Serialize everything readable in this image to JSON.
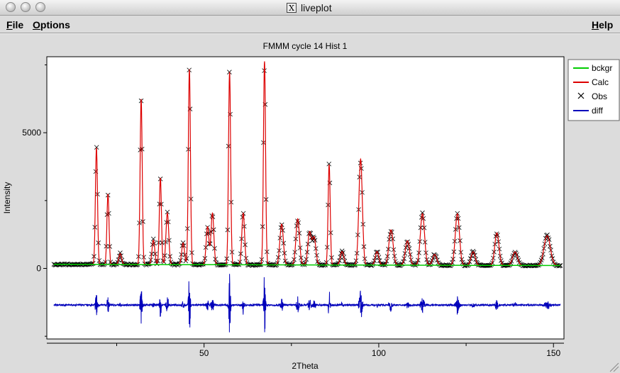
{
  "window": {
    "title": "liveplot",
    "x_badge": "X"
  },
  "menubar": {
    "file_accel": "F",
    "file_rest": "ile",
    "options_accel": "O",
    "options_rest": "ptions",
    "help_accel": "H",
    "help_rest": "elp"
  },
  "colors": {
    "bckgr": "#00cc00",
    "calc": "#dd0000",
    "obs": "#000000",
    "diff": "#0000bb"
  },
  "chart_data": {
    "type": "line",
    "title": "FMMM cycle 14 Hist 1",
    "xlabel": "2Theta",
    "ylabel": "Intensity",
    "xlim": [
      5,
      153
    ],
    "ylim": [
      -2600,
      7800
    ],
    "xticks": [
      50,
      100,
      150
    ],
    "xtick_labels": [
      "50",
      "100",
      "150"
    ],
    "yticks": [
      0,
      5000
    ],
    "ytick_labels": [
      "0",
      "5000"
    ],
    "diff_offset": -1350,
    "background_level": 150,
    "legend": [
      "bckgr",
      "Calc",
      "Obs",
      "diff"
    ],
    "legend_position": "right",
    "peaks": [
      {
        "x": 19.2,
        "h": 4300,
        "w": 0.3
      },
      {
        "x": 22.5,
        "h": 2600,
        "w": 0.3
      },
      {
        "x": 26.0,
        "h": 400,
        "w": 0.4
      },
      {
        "x": 32.0,
        "h": 6100,
        "w": 0.3
      },
      {
        "x": 35.5,
        "h": 900,
        "w": 0.4
      },
      {
        "x": 37.5,
        "h": 3200,
        "w": 0.3
      },
      {
        "x": 39.5,
        "h": 1900,
        "w": 0.4
      },
      {
        "x": 44.0,
        "h": 800,
        "w": 0.4
      },
      {
        "x": 45.8,
        "h": 7200,
        "w": 0.3
      },
      {
        "x": 51.0,
        "h": 1400,
        "w": 0.4
      },
      {
        "x": 52.4,
        "h": 1900,
        "w": 0.4
      },
      {
        "x": 57.3,
        "h": 7100,
        "w": 0.3
      },
      {
        "x": 61.2,
        "h": 1900,
        "w": 0.4
      },
      {
        "x": 67.3,
        "h": 7500,
        "w": 0.3
      },
      {
        "x": 72.2,
        "h": 1500,
        "w": 0.5
      },
      {
        "x": 76.8,
        "h": 1700,
        "w": 0.5
      },
      {
        "x": 80.2,
        "h": 1200,
        "w": 0.5
      },
      {
        "x": 81.5,
        "h": 1000,
        "w": 0.5
      },
      {
        "x": 85.8,
        "h": 3700,
        "w": 0.3
      },
      {
        "x": 89.5,
        "h": 500,
        "w": 0.5
      },
      {
        "x": 94.8,
        "h": 3900,
        "w": 0.5
      },
      {
        "x": 99.5,
        "h": 500,
        "w": 0.5
      },
      {
        "x": 103.5,
        "h": 1300,
        "w": 0.6
      },
      {
        "x": 108.2,
        "h": 900,
        "w": 0.6
      },
      {
        "x": 112.5,
        "h": 1900,
        "w": 0.6
      },
      {
        "x": 116.0,
        "h": 400,
        "w": 0.6
      },
      {
        "x": 122.5,
        "h": 1900,
        "w": 0.6
      },
      {
        "x": 127.0,
        "h": 500,
        "w": 0.6
      },
      {
        "x": 133.8,
        "h": 1200,
        "w": 0.6
      },
      {
        "x": 139.0,
        "h": 500,
        "w": 0.7
      },
      {
        "x": 148.2,
        "h": 1100,
        "w": 0.9
      }
    ]
  }
}
